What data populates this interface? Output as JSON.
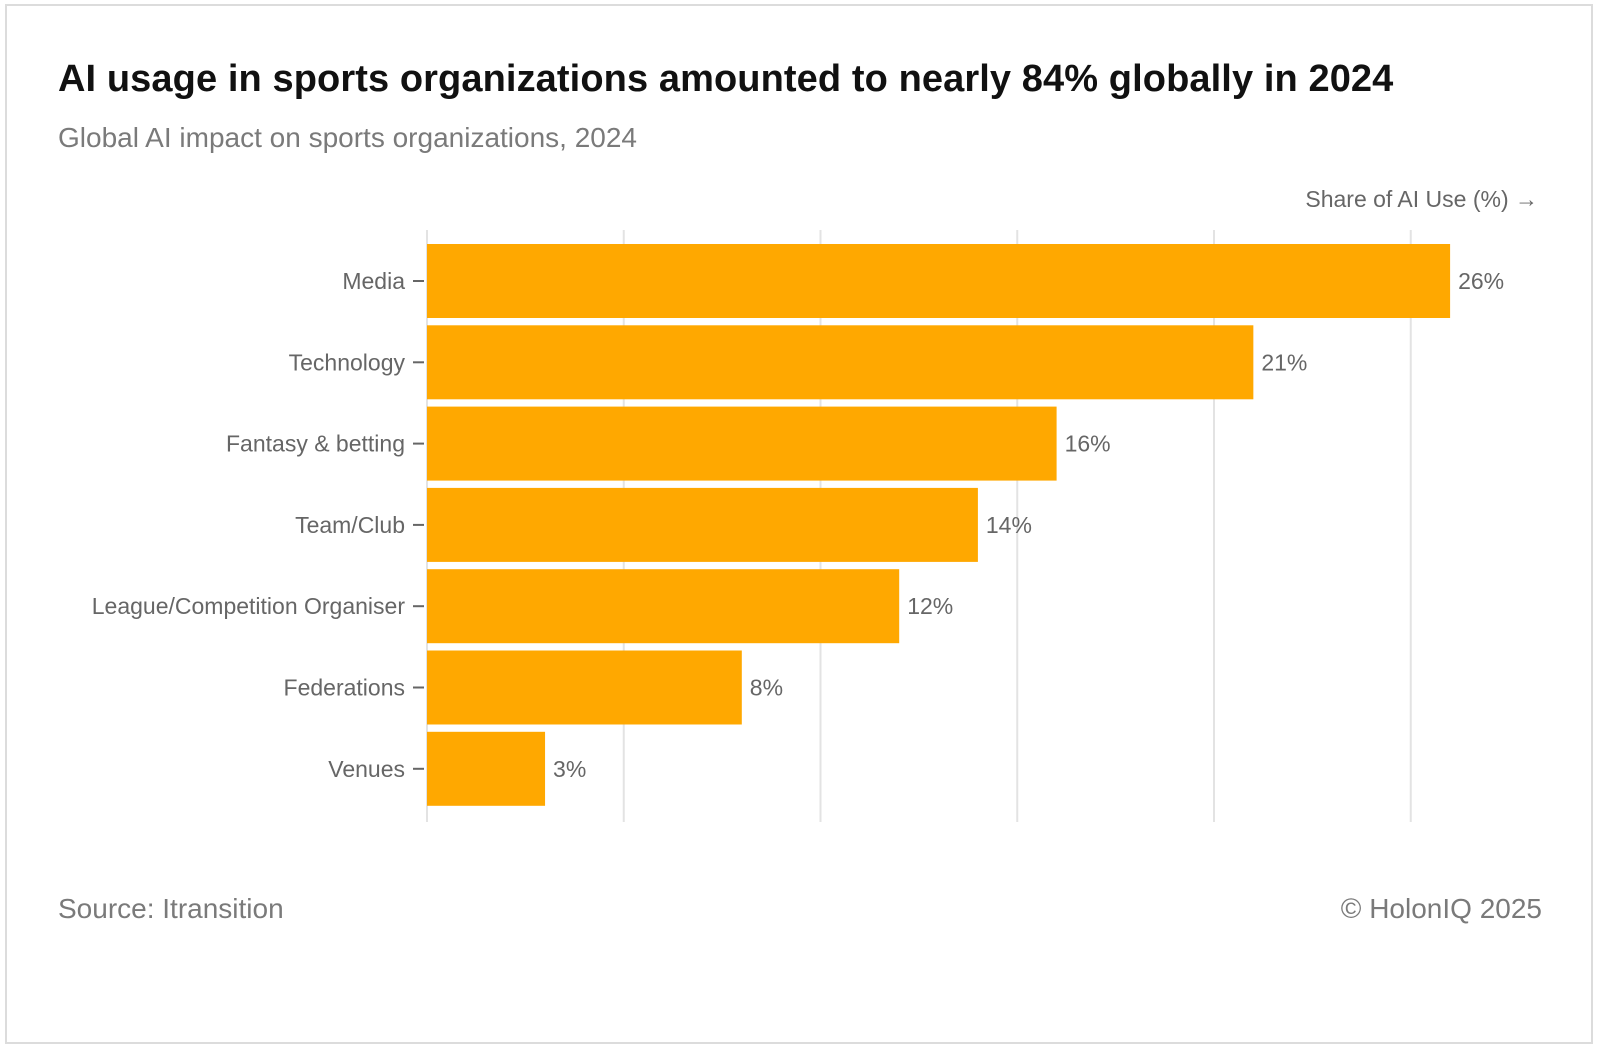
{
  "title": "AI usage in sports organizations amounted to nearly 84% globally in 2024",
  "subtitle": "Global AI impact on sports organizations, 2024",
  "axis_note": "Share of AI Use (%) →",
  "source": "Source: Itransition",
  "copyright": "© HolonIQ 2025",
  "colors": {
    "bar": "#ffa800",
    "grid": "#e3e3e3",
    "tick": "#666666"
  },
  "chart_data": {
    "type": "bar",
    "orientation": "horizontal",
    "categories": [
      "Media",
      "Technology",
      "Fantasy & betting",
      "Team/Club",
      "League/Competition Organiser",
      "Federations",
      "Venues"
    ],
    "values": [
      26,
      21,
      16,
      14,
      12,
      8,
      3
    ],
    "value_labels": [
      "26%",
      "21%",
      "16%",
      "14%",
      "12%",
      "8%",
      "3%"
    ],
    "title": "AI usage in sports organizations amounted to nearly 84% globally in 2024",
    "xlabel": "Share of AI Use (%)",
    "ylabel": "",
    "xlim": [
      0,
      26
    ],
    "x_gridlines": [
      0,
      5,
      10,
      15,
      20,
      25
    ],
    "grid": true,
    "legend": "none"
  }
}
